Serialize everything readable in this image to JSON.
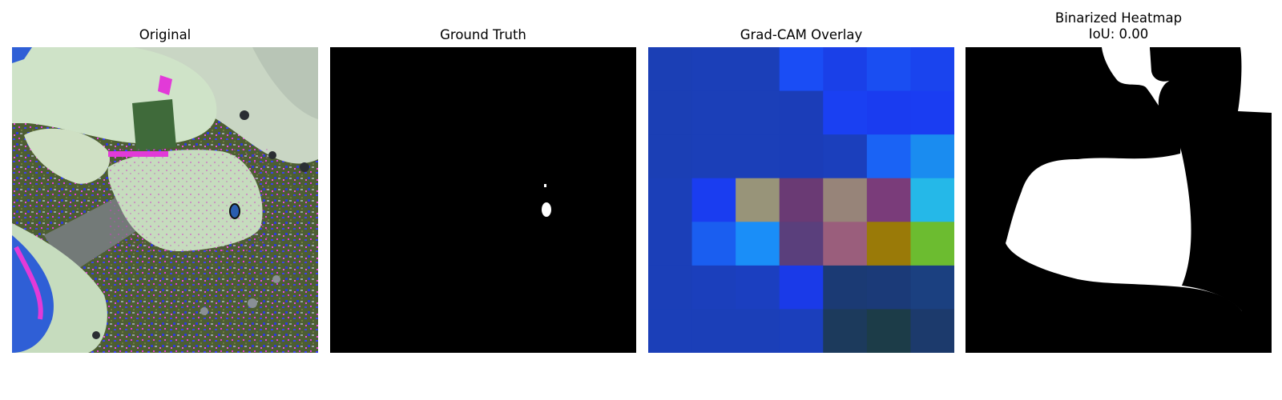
{
  "figure": {
    "panels": [
      {
        "id": "original",
        "title": "Original"
      },
      {
        "id": "ground-truth",
        "title": "Ground Truth"
      },
      {
        "id": "gradcam",
        "title": "Grad-CAM Overlay"
      },
      {
        "id": "binarized",
        "title": "Binarized Heatmap",
        "subtitle": "IoU: 0.00"
      }
    ],
    "gradcam_grid": {
      "rows": 7,
      "cols": 7,
      "colors": [
        [
          "#1b3fb5",
          "#1b3fb8",
          "#1b3fb8",
          "#1a4df5",
          "#1a40e8",
          "#1a4ef2",
          "#1a44ee"
        ],
        [
          "#1b3fb5",
          "#1b3fb8",
          "#1b3fb8",
          "#1b3db8",
          "#1a40f2",
          "#1a3cf0",
          "#1a3df2"
        ],
        [
          "#1b3fb5",
          "#1b3fb8",
          "#1b3fb8",
          "#1b3db8",
          "#1b3fbc",
          "#1a63f5",
          "#1a8cf0"
        ],
        [
          "#1b3fb8",
          "#1a3df0",
          "#989479",
          "#6a3a74",
          "#978479",
          "#7a3c7a",
          "#25b8e8"
        ],
        [
          "#1b3fb8",
          "#1a5ef0",
          "#1a8ef8",
          "#5a3f7c",
          "#9a5e7c",
          "#9a7a08",
          "#6cbc30"
        ],
        [
          "#1b3fb8",
          "#1b3fbc",
          "#1b3fc0",
          "#1a3ae8",
          "#1b3a74",
          "#1b3a78",
          "#1b4080"
        ],
        [
          "#1b3fb8",
          "#1b3fb8",
          "#1b3fb8",
          "#1b3fbc",
          "#1c3a5c",
          "#1c3c48",
          "#1c3a6c"
        ]
      ]
    }
  }
}
